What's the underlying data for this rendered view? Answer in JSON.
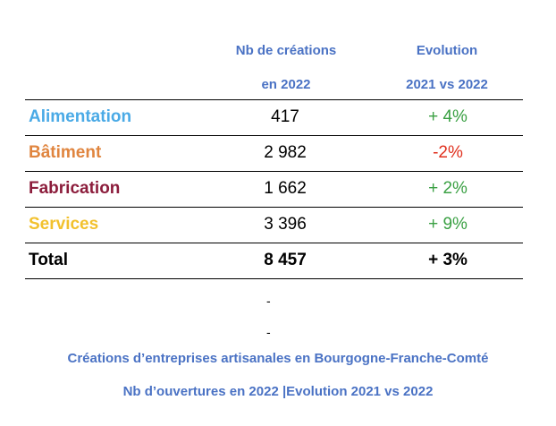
{
  "header": {
    "col_nb": [
      "Nb de créations",
      "en 2022"
    ],
    "col_evo": [
      "Evolution",
      "2021 vs 2022"
    ]
  },
  "rows": [
    {
      "label": "Alimentation",
      "value": "417",
      "evolution": "+ 4%",
      "label_color": "#4aaae6",
      "evo_color": "#3aa043"
    },
    {
      "label": "Bâtiment",
      "value": "2 982",
      "evolution": "-2%",
      "label_color": "#e0853f",
      "evo_color": "#e0301e"
    },
    {
      "label": "Fabrication",
      "value": "1 662",
      "evolution": "+ 2%",
      "label_color": "#8c1d3c",
      "evo_color": "#3aa043"
    },
    {
      "label": "Services",
      "value": "3 396",
      "evolution": "+ 9%",
      "label_color": "#f2c12e",
      "evo_color": "#3aa043"
    }
  ],
  "total": {
    "label": "Total",
    "value": "8 457",
    "evolution": "+ 3%"
  },
  "dashes": [
    "-",
    "-"
  ],
  "caption": {
    "line1": "Créations d’entreprises artisanales en Bourgogne-Franche-Comté",
    "line2": "Nb d’ouvertures en 2022 |Evolution 2021 vs 2022"
  }
}
